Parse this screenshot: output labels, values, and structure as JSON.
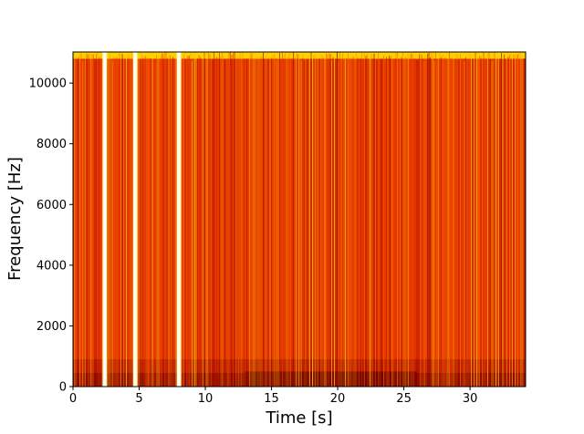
{
  "chart_data": {
    "type": "heatmap",
    "title": "",
    "xlabel": "Time [s]",
    "ylabel": "Frequency [Hz]",
    "xlim": [
      0,
      34.2
    ],
    "ylim": [
      0,
      11025
    ],
    "x_ticks": [
      0,
      5,
      10,
      15,
      20,
      25,
      30
    ],
    "x_tick_labels": [
      "0",
      "5",
      "10",
      "15",
      "20",
      "25",
      "30"
    ],
    "y_ticks": [
      0,
      2000,
      4000,
      6000,
      8000,
      10000
    ],
    "y_tick_labels": [
      "0",
      "2000",
      "4000",
      "6000",
      "8000",
      "10000"
    ],
    "colormap": "hot",
    "grid": false,
    "silent_segments_s": [
      2.4,
      4.7,
      8.0
    ],
    "description_colors": {
      "low": "#5a0000",
      "mid": "#e83a00",
      "high": "#ffe000",
      "peak": "#ffffff"
    }
  }
}
